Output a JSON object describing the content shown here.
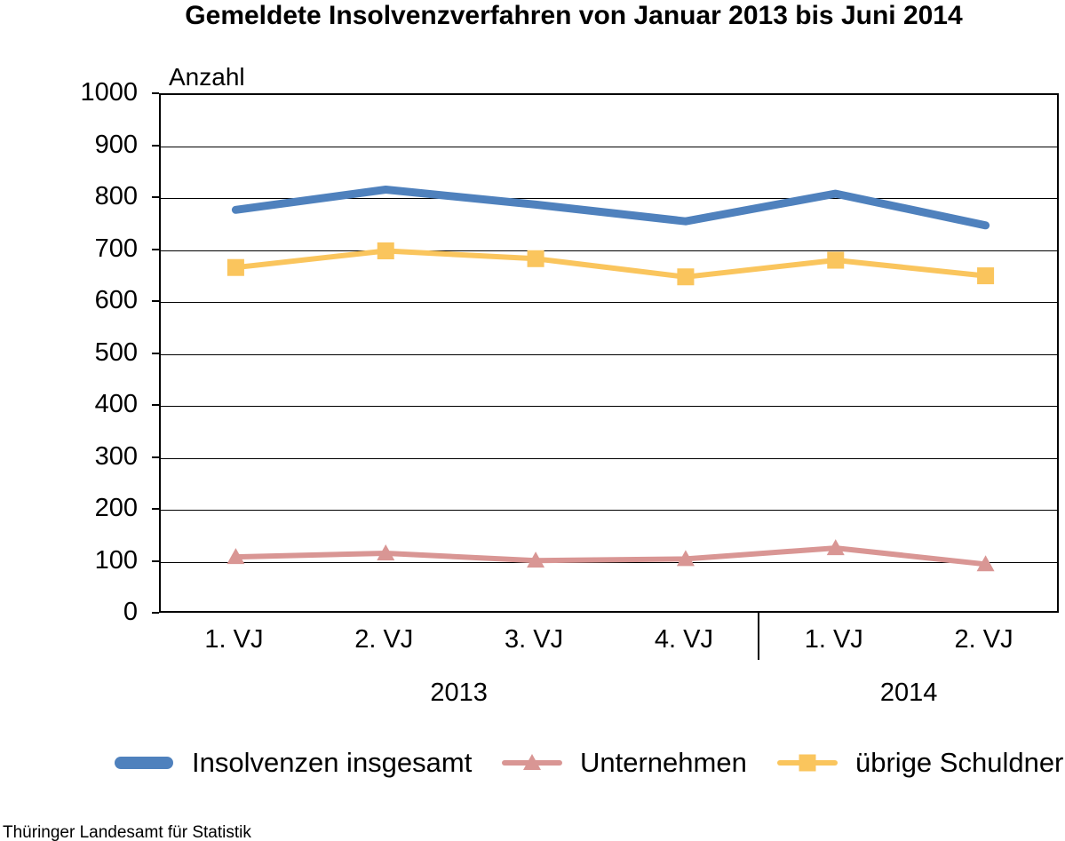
{
  "title": "Gemeldete Insolvenzverfahren von Januar 2013 bis Juni 2014",
  "footer": "Thüringer Landesamt für Statistik",
  "chart_data": {
    "type": "line",
    "title": "Gemeldete Insolvenzverfahren von Januar 2013 bis Juni 2014",
    "y_axis_label": "Anzahl",
    "xlabel": "",
    "ylabel": "Anzahl",
    "ylim": [
      0,
      1000
    ],
    "y_tick_step": 100,
    "grid": true,
    "legend_position": "bottom",
    "categories": [
      "1. VJ",
      "2. VJ",
      "3. VJ",
      "4. VJ",
      "1. VJ",
      "2. VJ"
    ],
    "year_groups": [
      {
        "label": "2013",
        "start": 0,
        "count": 4
      },
      {
        "label": "2014",
        "start": 4,
        "count": 2
      }
    ],
    "series": [
      {
        "name": "Insolvenzen insgesamt",
        "color": "#4F81BD",
        "marker": "none",
        "line_width": 9,
        "values": [
          779,
          818,
          789,
          757,
          810,
          749
        ]
      },
      {
        "name": "Unternehmen",
        "color": "#D99694",
        "marker": "triangle",
        "line_width": 6,
        "values": [
          111,
          118,
          104,
          107,
          128,
          97
        ]
      },
      {
        "name": "übrige Schuldner",
        "color": "#FAC55D",
        "marker": "square",
        "line_width": 6,
        "values": [
          668,
          700,
          685,
          650,
          682,
          652
        ]
      }
    ]
  }
}
